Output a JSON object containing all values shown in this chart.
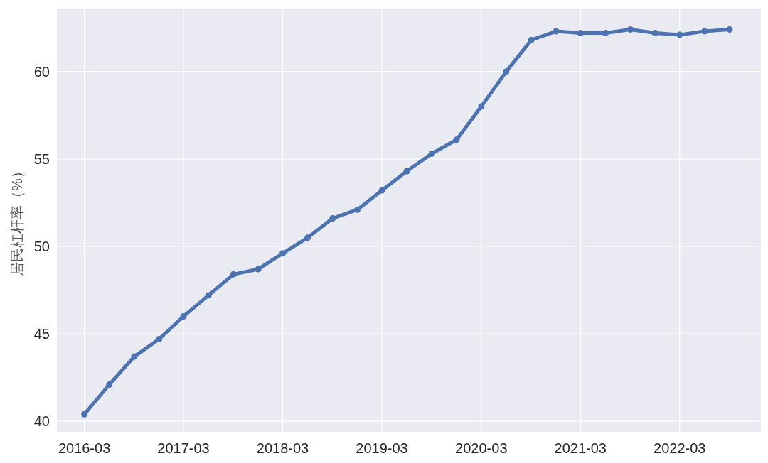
{
  "chart_data": {
    "type": "line",
    "ylabel": "居民杠杆率（%）",
    "x": [
      "2016-03",
      "2016-06",
      "2016-09",
      "2016-12",
      "2017-03",
      "2017-06",
      "2017-09",
      "2017-12",
      "2018-03",
      "2018-06",
      "2018-09",
      "2018-12",
      "2019-03",
      "2019-06",
      "2019-09",
      "2019-12",
      "2020-03",
      "2020-06",
      "2020-09",
      "2020-12",
      "2021-03",
      "2021-06",
      "2021-09",
      "2021-12",
      "2022-03",
      "2022-06",
      "2022-09"
    ],
    "series": [
      {
        "color": "#4c72b0",
        "values": [
          40.4,
          42.1,
          43.7,
          44.7,
          46.0,
          47.2,
          48.4,
          48.7,
          49.6,
          50.5,
          51.6,
          52.1,
          53.2,
          54.3,
          55.3,
          56.1,
          58.0,
          60.0,
          61.8,
          62.3,
          62.2,
          62.2,
          62.4,
          62.2,
          62.1,
          62.3,
          62.4
        ]
      }
    ],
    "xlim": [
      "2015-11-21",
      "2022-12-25"
    ],
    "ylim": [
      39.4,
      63.6
    ],
    "xticks": [
      {
        "value": "2016-03",
        "label": "2016-03"
      },
      {
        "value": "2017-03",
        "label": "2017-03"
      },
      {
        "value": "2018-03",
        "label": "2018-03"
      },
      {
        "value": "2019-03",
        "label": "2019-03"
      },
      {
        "value": "2020-03",
        "label": "2020-03"
      },
      {
        "value": "2021-03",
        "label": "2021-03"
      },
      {
        "value": "2022-03",
        "label": "2022-03"
      }
    ],
    "yticks": [
      40,
      45,
      50,
      55,
      60
    ],
    "grid": true,
    "marker": "circle",
    "line_style": "solid"
  }
}
